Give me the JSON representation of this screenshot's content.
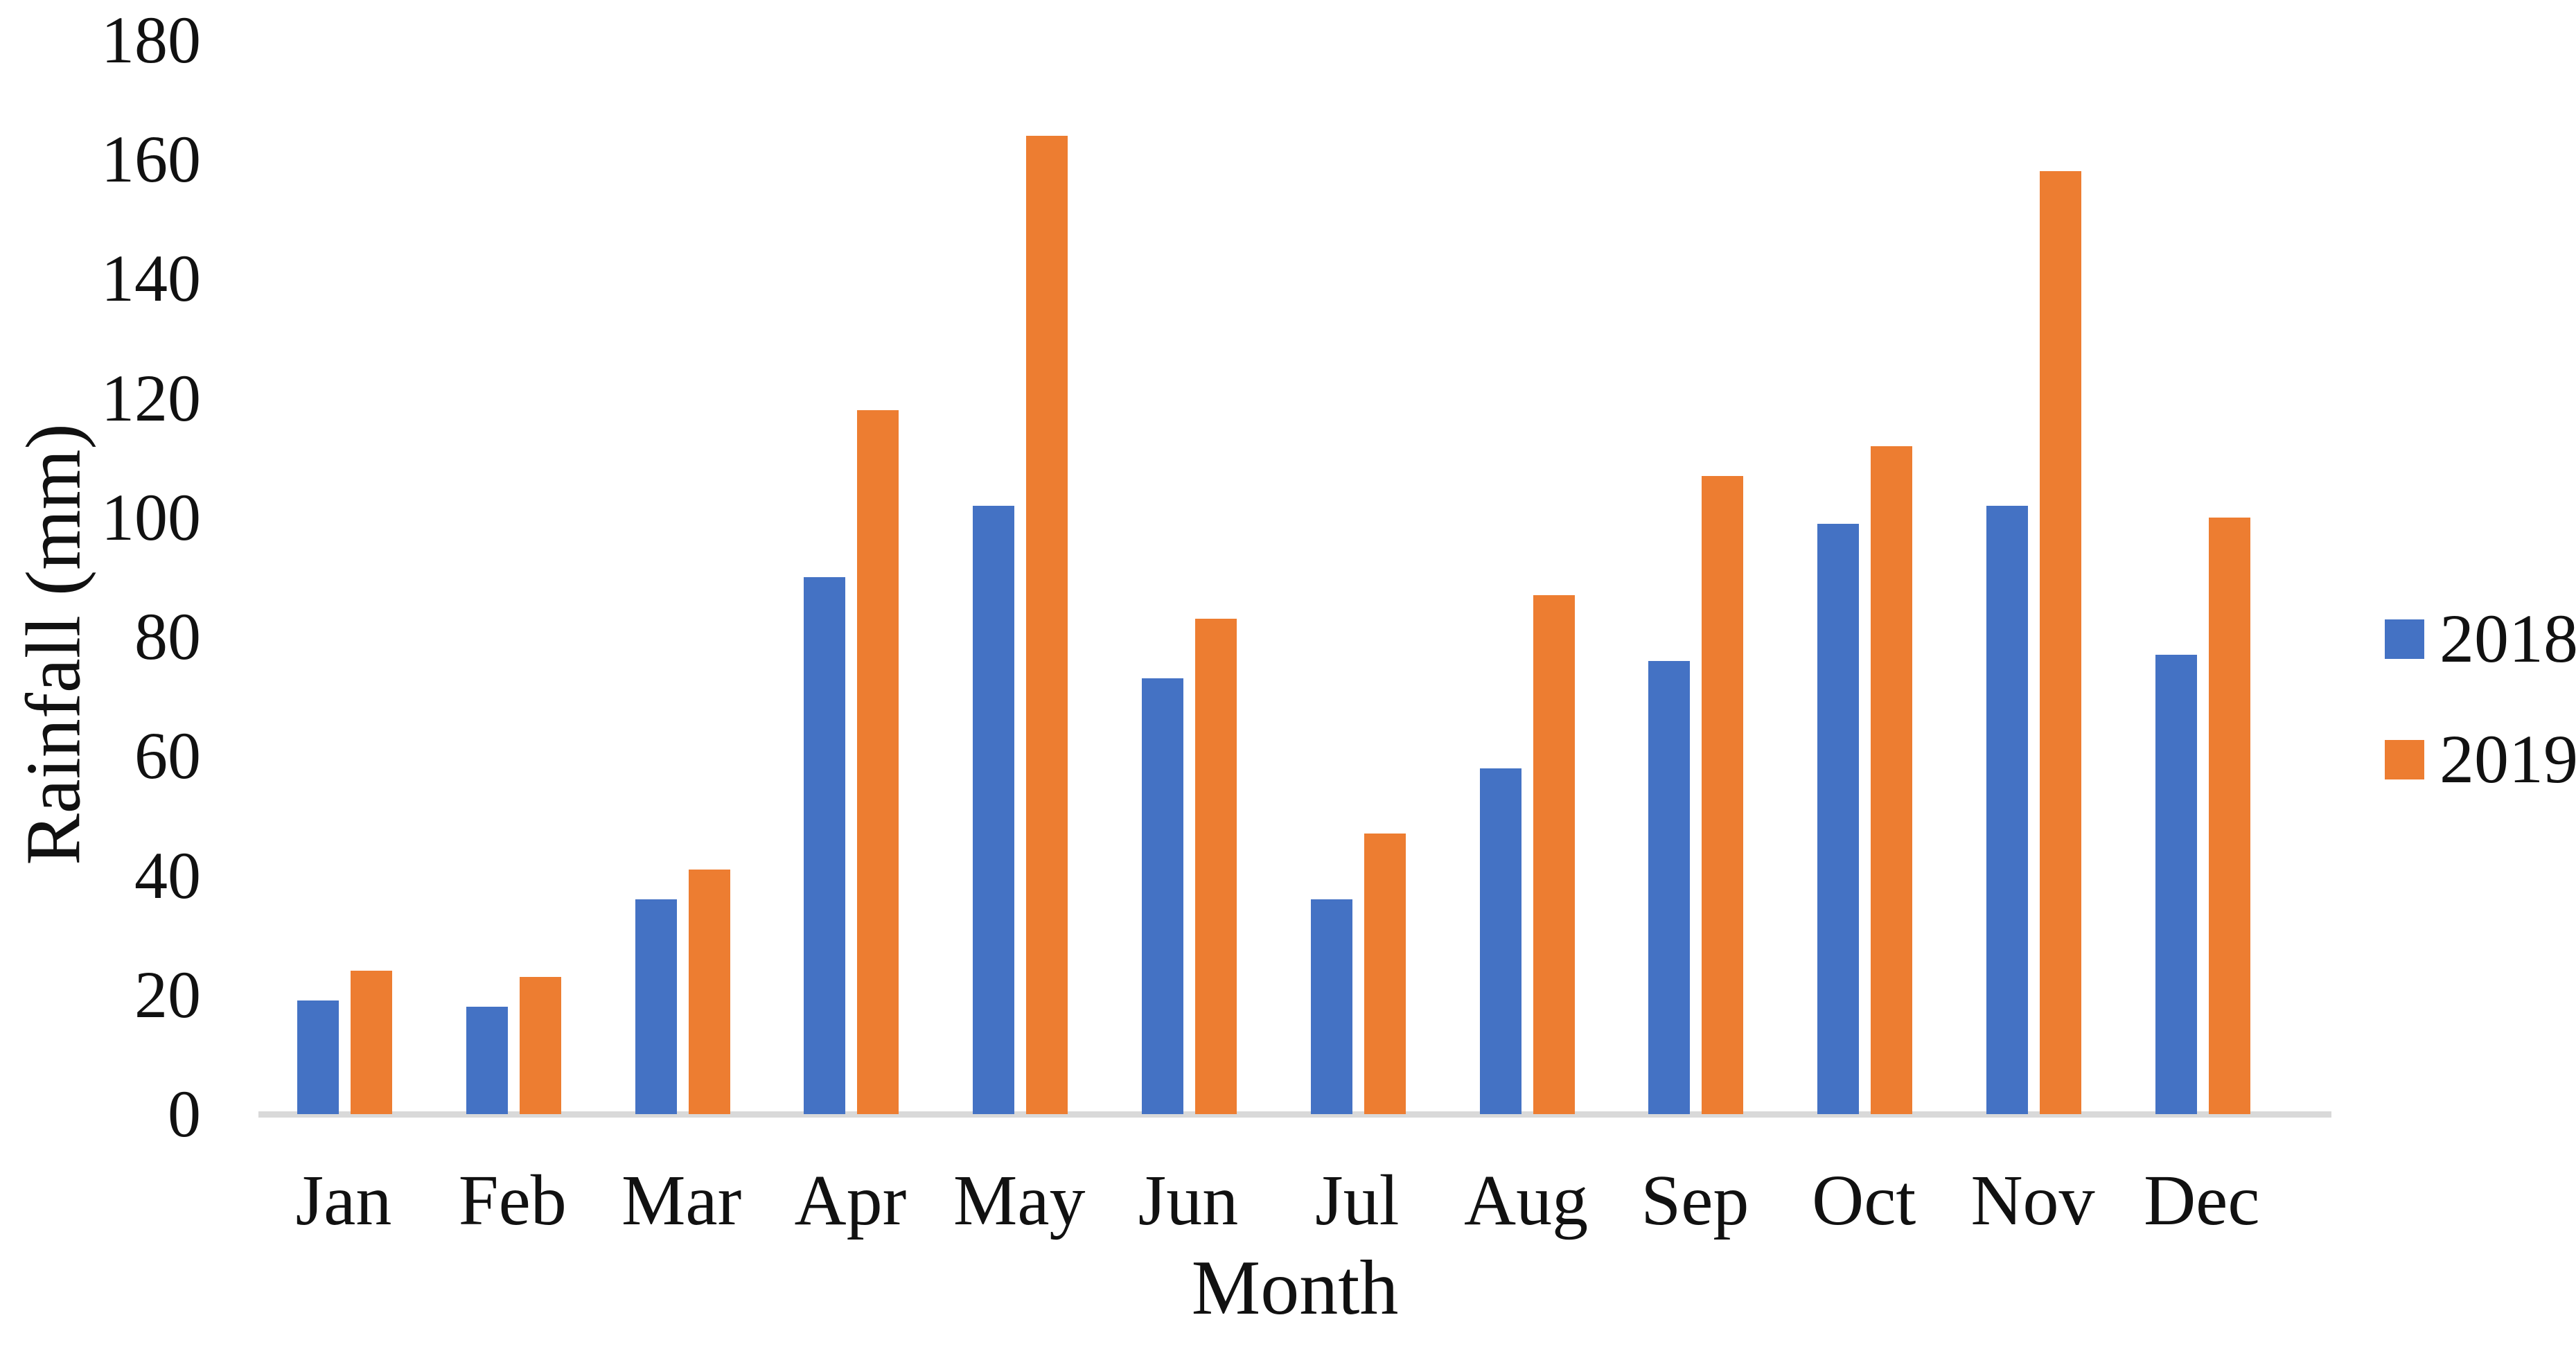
{
  "chart_data": {
    "type": "bar",
    "title": "",
    "xlabel": "Month",
    "ylabel": "Rainfall (mm)",
    "categories": [
      "Jan",
      "Feb",
      "Mar",
      "Apr",
      "May",
      "Jun",
      "Jul",
      "Aug",
      "Sep",
      "Oct",
      "Nov",
      "Dec"
    ],
    "series": [
      {
        "name": "2018",
        "color": "#4472C4",
        "values": [
          19,
          18,
          36,
          90,
          102,
          73,
          36,
          58,
          76,
          99,
          102,
          77
        ]
      },
      {
        "name": "2019",
        "color": "#ED7D31",
        "values": [
          24,
          23,
          41,
          118,
          164,
          83,
          47,
          87,
          107,
          112,
          158,
          100
        ]
      }
    ],
    "ylim": [
      0,
      180
    ],
    "ytick_step": 20,
    "ytick_labels": [
      "0",
      "20",
      "40",
      "60",
      "80",
      "100",
      "120",
      "140",
      "160",
      "180"
    ],
    "grid": false,
    "legend_position": "right",
    "axis_line_color": "#d9d9d9",
    "text_color": "#111111"
  }
}
